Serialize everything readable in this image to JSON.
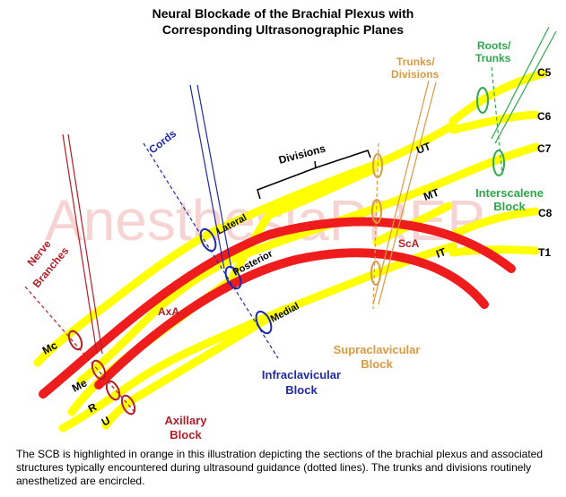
{
  "title_line1": "Neural Blockade of the Brachial Plexus with",
  "title_line2": "Corresponding Ultrasonographic Planes",
  "watermark": "AnesthesiaPREP",
  "nerve_roots": [
    "C5",
    "C6",
    "C7",
    "C8",
    "T1"
  ],
  "trunks": [
    "UT",
    "MT",
    "IT"
  ],
  "cords": [
    "Lateral",
    "Posterior",
    "Medial"
  ],
  "branches": [
    "Mc",
    "Me",
    "R",
    "U"
  ],
  "vessels": [
    "AxA",
    "ScA"
  ],
  "section_labels": {
    "roots_trunks": [
      "Roots/",
      "Trunks"
    ],
    "trunks_divisions": [
      "Trunks/",
      "Divisions"
    ],
    "divisions": "Divisions",
    "cords": "Cords",
    "nerve_branches": [
      "Nerve",
      "Branches"
    ]
  },
  "blocks": {
    "interscalene": [
      "Interscalene",
      "Block"
    ],
    "supraclavicular": [
      "Supraclavicular",
      "Block"
    ],
    "infraclavicular": [
      "Infraclavicular",
      "Block"
    ],
    "axillary": [
      "Axillary",
      "Block"
    ]
  },
  "caption": "The  SCB is highlighted in orange in this illustration depicting the sections of the brachial plexus and associated structures typically encountered during ultrasound guidance (dotted lines).  The trunks and divisions routinely anesthetized are encircled.",
  "colors": {
    "nerve": "#ffff00",
    "vessel": "#ee1c1c",
    "interscalene": "#2ea84a",
    "supraclavicular": "#d99a40",
    "infraclavicular": "#1f2aa8",
    "axillary": "#b41e28",
    "cords_label": "#1f2aa8"
  }
}
